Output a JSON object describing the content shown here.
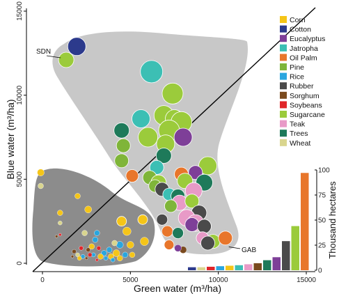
{
  "chart_data": {
    "type": "scatter",
    "xlabel": "Green water (m³/ha)",
    "ylabel": "Blue water (m³/ha)",
    "xlim": [
      -500,
      15500
    ],
    "ylim": [
      -200,
      15300
    ],
    "xticks": [
      0,
      5000,
      10000,
      15000
    ],
    "yticks": [
      0,
      5000,
      10000,
      15000
    ],
    "diagonal_line": true,
    "annotations": [
      {
        "label": "SDN",
        "x": 1350,
        "y": 12100
      },
      {
        "label": "GAB",
        "x": 10200,
        "y": 1100
      }
    ],
    "series": [
      {
        "name": "Corn",
        "color": "#F5C518"
      },
      {
        "name": "Cotton",
        "color": "#2C3A8C"
      },
      {
        "name": "Eucalyptus",
        "color": "#7E3F98"
      },
      {
        "name": "Jatropha",
        "color": "#3CBFB4"
      },
      {
        "name": "Oil Palm",
        "color": "#E8762B"
      },
      {
        "name": "Pine",
        "color": "#7FB539"
      },
      {
        "name": "Rice",
        "color": "#2AA6DF"
      },
      {
        "name": "Rubber",
        "color": "#4A4A4A"
      },
      {
        "name": "Sorghum",
        "color": "#7A4A1E"
      },
      {
        "name": "Soybeans",
        "color": "#E0262A"
      },
      {
        "name": "Sugarcane",
        "color": "#9BCB3B"
      },
      {
        "name": "Teak",
        "color": "#E89AC7"
      },
      {
        "name": "Trees",
        "color": "#1E7A5A"
      },
      {
        "name": "Wheat",
        "color": "#D9D58E"
      }
    ],
    "points": [
      {
        "s": "Cotton",
        "x": 1950,
        "y": 12900,
        "r": 13
      },
      {
        "s": "Sugarcane",
        "x": 1350,
        "y": 12100,
        "r": 11
      },
      {
        "s": "Jatropha",
        "x": 6200,
        "y": 11400,
        "r": 16
      },
      {
        "s": "Sugarcane",
        "x": 7400,
        "y": 10100,
        "r": 15
      },
      {
        "s": "Jatropha",
        "x": 5600,
        "y": 8600,
        "r": 13
      },
      {
        "s": "Sugarcane",
        "x": 6900,
        "y": 8800,
        "r": 14
      },
      {
        "s": "Sugarcane",
        "x": 7500,
        "y": 8600,
        "r": 13
      },
      {
        "s": "Sugarcane",
        "x": 7900,
        "y": 8400,
        "r": 15
      },
      {
        "s": "Sugarcane",
        "x": 7200,
        "y": 7900,
        "r": 15
      },
      {
        "s": "Sugarcane",
        "x": 6000,
        "y": 7500,
        "r": 14
      },
      {
        "s": "Trees",
        "x": 4500,
        "y": 7900,
        "r": 11
      },
      {
        "s": "Eucalyptus",
        "x": 8000,
        "y": 7500,
        "r": 13
      },
      {
        "s": "Pine",
        "x": 4600,
        "y": 7000,
        "r": 10
      },
      {
        "s": "Sugarcane",
        "x": 7000,
        "y": 7100,
        "r": 13
      },
      {
        "s": "Trees",
        "x": 6900,
        "y": 6400,
        "r": 11
      },
      {
        "s": "Pine",
        "x": 4500,
        "y": 6100,
        "r": 10
      },
      {
        "s": "Jatropha",
        "x": 6500,
        "y": 5700,
        "r": 10
      },
      {
        "s": "Sugarcane",
        "x": 9400,
        "y": 5800,
        "r": 13
      },
      {
        "s": "Oil Palm",
        "x": 5100,
        "y": 5200,
        "r": 9
      },
      {
        "s": "Pine",
        "x": 6100,
        "y": 5100,
        "r": 10
      },
      {
        "s": "Sugarcane",
        "x": 6600,
        "y": 4800,
        "r": 11
      },
      {
        "s": "Pine",
        "x": 6400,
        "y": 4600,
        "r": 9
      },
      {
        "s": "Oil Palm",
        "x": 7900,
        "y": 5300,
        "r": 10
      },
      {
        "s": "Eucalyptus",
        "x": 8700,
        "y": 5400,
        "r": 10
      },
      {
        "s": "Sugarcane",
        "x": 8100,
        "y": 4900,
        "r": 11
      },
      {
        "s": "Trees",
        "x": 9200,
        "y": 4800,
        "r": 12
      },
      {
        "s": "Rubber",
        "x": 6800,
        "y": 4400,
        "r": 10
      },
      {
        "s": "Jatropha",
        "x": 7200,
        "y": 4100,
        "r": 9
      },
      {
        "s": "Teak",
        "x": 8600,
        "y": 4300,
        "r": 12
      },
      {
        "s": "Trees",
        "x": 7700,
        "y": 4000,
        "r": 10
      },
      {
        "s": "Teak",
        "x": 7800,
        "y": 3600,
        "r": 11
      },
      {
        "s": "Sugarcane",
        "x": 8500,
        "y": 3700,
        "r": 10
      },
      {
        "s": "Pine",
        "x": 7300,
        "y": 3400,
        "r": 9
      },
      {
        "s": "Rubber",
        "x": 8900,
        "y": 3000,
        "r": 11
      },
      {
        "s": "Teak",
        "x": 8200,
        "y": 2700,
        "r": 12
      },
      {
        "s": "Teak",
        "x": 8700,
        "y": 2400,
        "r": 12
      },
      {
        "s": "Eucalyptus",
        "x": 8500,
        "y": 2300,
        "r": 10
      },
      {
        "s": "Rubber",
        "x": 6800,
        "y": 2600,
        "r": 8
      },
      {
        "s": "Rubber",
        "x": 9200,
        "y": 2200,
        "r": 10
      },
      {
        "s": "Oil Palm",
        "x": 7100,
        "y": 1900,
        "r": 8
      },
      {
        "s": "Trees",
        "x": 7700,
        "y": 1800,
        "r": 8
      },
      {
        "s": "Sugarcane",
        "x": 9700,
        "y": 1300,
        "r": 10
      },
      {
        "s": "Oil Palm",
        "x": 10400,
        "y": 1500,
        "r": 10
      },
      {
        "s": "Teak",
        "x": 9100,
        "y": 1500,
        "r": 9
      },
      {
        "s": "Rubber",
        "x": 9400,
        "y": 1200,
        "r": 10
      },
      {
        "s": "Oil Palm",
        "x": 7200,
        "y": 1100,
        "r": 7
      },
      {
        "s": "Sorghum",
        "x": 8000,
        "y": 800,
        "r": 5
      },
      {
        "s": "Eucalyptus",
        "x": 7700,
        "y": 900,
        "r": 5
      },
      {
        "s": "Corn",
        "x": -100,
        "y": 5400,
        "r": 5
      },
      {
        "s": "Wheat",
        "x": -100,
        "y": 4600,
        "r": 4
      },
      {
        "s": "Corn",
        "x": 2000,
        "y": 4000,
        "r": 4
      },
      {
        "s": "Corn",
        "x": 1000,
        "y": 3000,
        "r": 4
      },
      {
        "s": "Wheat",
        "x": 1000,
        "y": 2400,
        "r": 3
      },
      {
        "s": "Corn",
        "x": 2600,
        "y": 3200,
        "r": 5
      },
      {
        "s": "Corn",
        "x": 4500,
        "y": 2500,
        "r": 7
      },
      {
        "s": "Corn",
        "x": 5700,
        "y": 2600,
        "r": 7
      },
      {
        "s": "Corn",
        "x": 4800,
        "y": 1900,
        "r": 6
      },
      {
        "s": "Rice",
        "x": 3100,
        "y": 1800,
        "r": 4
      },
      {
        "s": "Wheat",
        "x": 2400,
        "y": 1800,
        "r": 4
      },
      {
        "s": "Soybeans",
        "x": 1000,
        "y": 1700,
        "r": 2
      },
      {
        "s": "Sorghum",
        "x": 800,
        "y": 1600,
        "r": 2
      },
      {
        "s": "Corn",
        "x": 5800,
        "y": 1300,
        "r": 6
      },
      {
        "s": "Rice",
        "x": 3000,
        "y": 1400,
        "r": 4
      },
      {
        "s": "Corn",
        "x": 2800,
        "y": 1000,
        "r": 4
      },
      {
        "s": "Rice",
        "x": 4400,
        "y": 1100,
        "r": 5
      },
      {
        "s": "Wheat",
        "x": 4100,
        "y": 1200,
        "r": 4
      },
      {
        "s": "Corn",
        "x": 5000,
        "y": 1100,
        "r": 5
      },
      {
        "s": "Rice",
        "x": 3800,
        "y": 800,
        "r": 4
      },
      {
        "s": "Soybeans",
        "x": 2200,
        "y": 900,
        "r": 3
      },
      {
        "s": "Sorghum",
        "x": 2600,
        "y": 800,
        "r": 3
      },
      {
        "s": "Sorghum",
        "x": 1800,
        "y": 700,
        "r": 3
      },
      {
        "s": "Soybeans",
        "x": 3200,
        "y": 900,
        "r": 3
      },
      {
        "s": "Rice",
        "x": 3500,
        "y": 600,
        "r": 4
      },
      {
        "s": "Corn",
        "x": 4200,
        "y": 600,
        "r": 5
      },
      {
        "s": "Rice",
        "x": 4700,
        "y": 500,
        "r": 4
      },
      {
        "s": "Corn",
        "x": 3900,
        "y": 400,
        "r": 4
      },
      {
        "s": "Rice",
        "x": 2900,
        "y": 500,
        "r": 3
      },
      {
        "s": "Corn",
        "x": 3300,
        "y": 400,
        "r": 4
      },
      {
        "s": "Soybeans",
        "x": 2700,
        "y": 500,
        "r": 3
      },
      {
        "s": "Rice",
        "x": 2300,
        "y": 400,
        "r": 3
      },
      {
        "s": "Wheat",
        "x": 2000,
        "y": 500,
        "r": 3
      },
      {
        "s": "Corn",
        "x": 4400,
        "y": 300,
        "r": 4
      },
      {
        "s": "Rice",
        "x": 3600,
        "y": 300,
        "r": 3
      },
      {
        "s": "Sorghum",
        "x": 2500,
        "y": 300,
        "r": 2
      },
      {
        "s": "Sorghum",
        "x": 1700,
        "y": 400,
        "r": 2
      },
      {
        "s": "Rice",
        "x": 4000,
        "y": 200,
        "r": 3
      },
      {
        "s": "Corn",
        "x": 5100,
        "y": 500,
        "r": 4
      },
      {
        "s": "Soybeans",
        "x": 3100,
        "y": 200,
        "r": 2
      },
      {
        "s": "Corn",
        "x": 2100,
        "y": 300,
        "r": 3
      }
    ],
    "inset_bar": {
      "ylabel": "Thousand hectares",
      "yticks": [
        0,
        25,
        50,
        75,
        100
      ],
      "ylim": [
        0,
        100
      ],
      "values": [
        {
          "s": "Cotton",
          "v": 3
        },
        {
          "s": "Wheat",
          "v": 3
        },
        {
          "s": "Soybeans",
          "v": 3.5
        },
        {
          "s": "Rice",
          "v": 4
        },
        {
          "s": "Corn",
          "v": 4.5
        },
        {
          "s": "Jatropha",
          "v": 5
        },
        {
          "s": "Teak",
          "v": 6
        },
        {
          "s": "Sorghum",
          "v": 7
        },
        {
          "s": "Trees",
          "v": 10
        },
        {
          "s": "Eucalyptus",
          "v": 13
        },
        {
          "s": "Rubber",
          "v": 29
        },
        {
          "s": "Sugarcane",
          "v": 44
        },
        {
          "s": "Oil Palm",
          "v": 97
        }
      ]
    }
  }
}
